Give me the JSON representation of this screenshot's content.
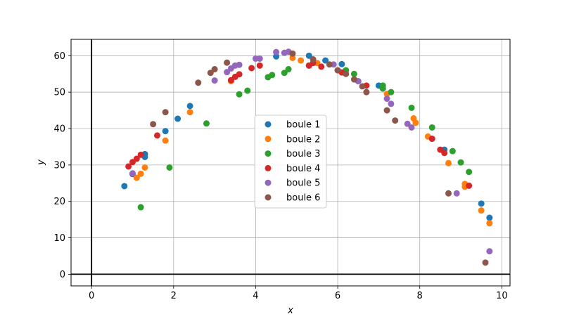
{
  "chart_data": {
    "type": "scatter",
    "title": "",
    "xlabel": "x",
    "ylabel": "y",
    "xlim": [
      -0.5,
      10.2
    ],
    "ylim": [
      -3.2,
      64.5
    ],
    "xticks": [
      0,
      2,
      4,
      6,
      8,
      10
    ],
    "yticks": [
      0,
      10,
      20,
      30,
      40,
      50,
      60
    ],
    "xtick_labels": [
      "0",
      "2",
      "4",
      "6",
      "8",
      "10"
    ],
    "ytick_labels": [
      "0",
      "10",
      "20",
      "30",
      "40",
      "50",
      "60"
    ],
    "grid": true,
    "reference_lines": {
      "x": 0,
      "y": 0
    },
    "legend_position": "center",
    "series": [
      {
        "name": "boule 1",
        "color": "#1f77b4",
        "x": [
          0.8,
          1.0,
          1.3,
          1.3,
          1.8,
          2.1,
          2.4,
          4.5,
          5.3,
          5.7,
          6.1,
          7.0,
          7.1,
          8.6,
          9.5,
          9.7
        ],
        "y": [
          24.2,
          27.5,
          33.0,
          32.2,
          39.3,
          42.7,
          46.2,
          59.8,
          60.0,
          58.7,
          57.7,
          51.8,
          51.0,
          34.2,
          19.4,
          15.5
        ]
      },
      {
        "name": "boule 2",
        "color": "#ff7f0e",
        "x": [
          1.1,
          1.2,
          1.3,
          1.8,
          2.4,
          3.4,
          4.9,
          5.1,
          5.5,
          7.2,
          7.85,
          7.9,
          8.2,
          8.7,
          9.1,
          9.1,
          9.5,
          9.7
        ],
        "y": [
          26.5,
          27.6,
          29.3,
          36.7,
          44.5,
          53.0,
          59.4,
          58.7,
          58.0,
          49.5,
          42.8,
          41.6,
          37.8,
          30.5,
          24.8,
          24.0,
          17.5,
          14.0
        ]
      },
      {
        "name": "boule 3",
        "color": "#2ca02c",
        "x": [
          1.2,
          1.9,
          2.8,
          3.6,
          3.8,
          4.3,
          4.4,
          4.7,
          4.8,
          5.3,
          6.2,
          6.4,
          7.1,
          7.1,
          7.3,
          7.8,
          8.3,
          8.8,
          9.0,
          9.2
        ],
        "y": [
          18.4,
          29.3,
          41.4,
          49.4,
          50.4,
          54.1,
          54.7,
          55.3,
          56.3,
          57.3,
          56.0,
          55.0,
          51.0,
          51.8,
          50.0,
          45.7,
          40.3,
          33.8,
          30.7,
          28.1
        ]
      },
      {
        "name": "boule 4",
        "color": "#d62728",
        "x": [
          0.9,
          1.0,
          1.1,
          1.2,
          1.6,
          3.4,
          3.5,
          3.6,
          3.9,
          4.1,
          5.3,
          5.4,
          5.6,
          6.1,
          6.5,
          6.7,
          8.3,
          8.5,
          8.6,
          9.2
        ],
        "y": [
          29.6,
          30.8,
          31.7,
          32.8,
          38.1,
          53.3,
          54.2,
          54.9,
          56.6,
          57.3,
          57.3,
          58.0,
          57.0,
          55.4,
          53.0,
          51.8,
          37.2,
          34.2,
          33.3,
          24.3
        ]
      },
      {
        "name": "boule 5",
        "color": "#9467bd",
        "x": [
          1.0,
          3.0,
          3.3,
          3.4,
          3.5,
          3.6,
          4.0,
          4.1,
          4.5,
          4.7,
          4.8,
          5.9,
          6.0,
          6.5,
          7.2,
          7.3,
          7.7,
          7.8,
          8.9,
          9.7
        ],
        "y": [
          27.7,
          53.2,
          55.5,
          56.5,
          57.3,
          57.5,
          59.2,
          59.2,
          61.0,
          60.8,
          61.1,
          57.6,
          56.0,
          53.0,
          48.2,
          46.8,
          41.3,
          40.3,
          22.2,
          6.3
        ]
      },
      {
        "name": "boule 6",
        "color": "#8c564b",
        "x": [
          1.5,
          1.8,
          2.6,
          2.9,
          3.0,
          3.3,
          4.9,
          5.4,
          5.8,
          6.0,
          6.2,
          6.4,
          6.6,
          6.7,
          7.2,
          7.4,
          8.7,
          9.6
        ],
        "y": [
          41.2,
          44.5,
          52.6,
          55.3,
          56.3,
          58.1,
          60.6,
          59.0,
          57.6,
          56.0,
          55.0,
          53.5,
          51.6,
          50.0,
          45.0,
          42.2,
          22.2,
          3.2
        ]
      }
    ]
  }
}
